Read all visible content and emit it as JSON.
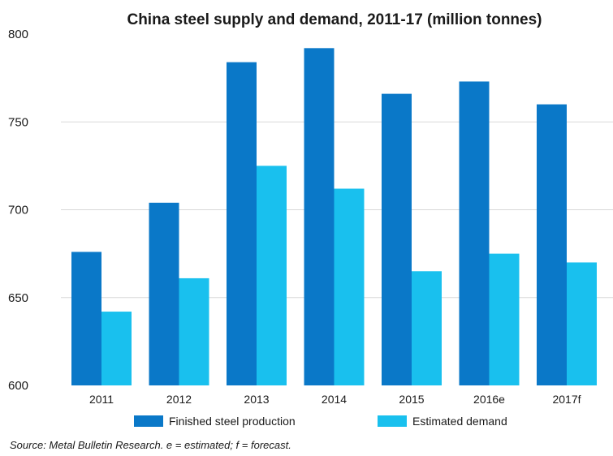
{
  "chart_data": {
    "type": "bar",
    "title": "China steel supply and demand, 2011-17 (million tonnes)",
    "categories": [
      "2011",
      "2012",
      "2013",
      "2014",
      "2015",
      "2016e",
      "2017f"
    ],
    "series": [
      {
        "name": "Finished steel production",
        "color": "#0a78c8",
        "values": [
          676,
          704,
          784,
          792,
          766,
          773,
          760
        ]
      },
      {
        "name": "Estimated demand",
        "color": "#19c0ee",
        "values": [
          642,
          661,
          725,
          712,
          665,
          675,
          670
        ]
      }
    ],
    "ylim": [
      600,
      800
    ],
    "yticks": [
      "600",
      "650",
      "700",
      "750",
      "800"
    ],
    "grid": true,
    "legend_position": "bottom",
    "source_note": "Source: Metal Bulletin Research.  e = estimated; f = forecast."
  }
}
